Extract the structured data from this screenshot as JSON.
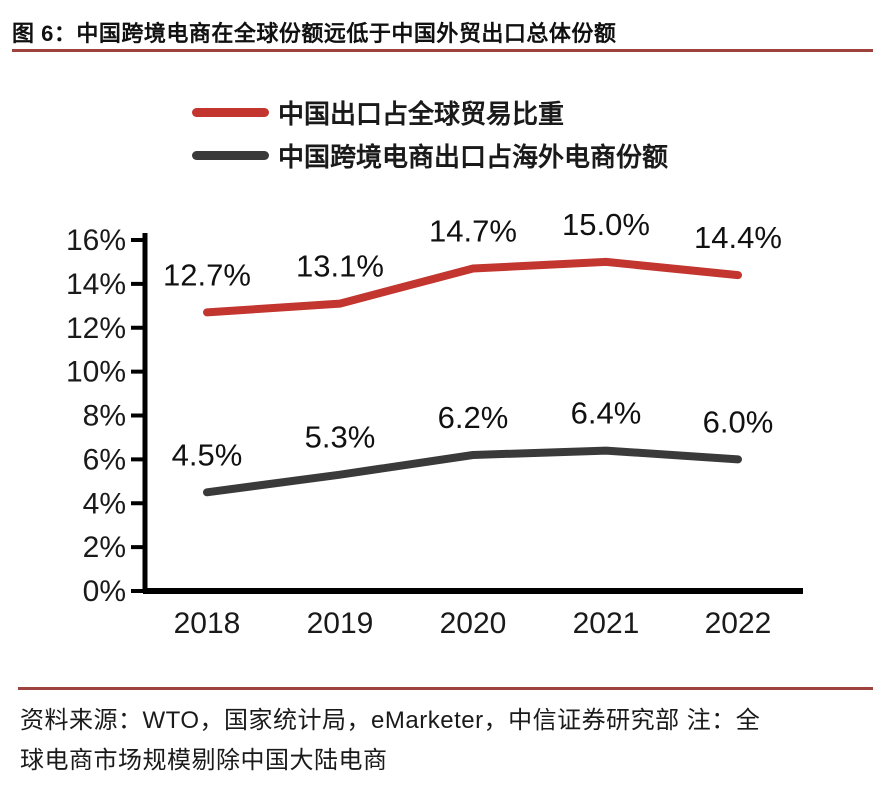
{
  "page": {
    "background": "#FFFFFF"
  },
  "header": {
    "title": "图 6：中国跨境电商在全球份额远低于中国外贸出口总体份额",
    "rule_color": "#9E423E"
  },
  "legend": {
    "items": [
      {
        "label": "中国出口占全球贸易比重",
        "color": "#C2362F"
      },
      {
        "label": "中国跨境电商出口占海外电商份额",
        "color": "#3A3A3A"
      }
    ]
  },
  "chart_data": {
    "type": "line",
    "categories": [
      "2018",
      "2019",
      "2020",
      "2021",
      "2022"
    ],
    "series": [
      {
        "name": "中国出口占全球贸易比重",
        "color": "#C2362F",
        "values": [
          12.7,
          13.1,
          14.7,
          15.0,
          14.4
        ],
        "point_labels": [
          "12.7%",
          "13.1%",
          "14.7%",
          "15.0%",
          "14.4%"
        ]
      },
      {
        "name": "中国跨境电商出口占海外电商份额",
        "color": "#3A3A3A",
        "values": [
          4.5,
          5.3,
          6.2,
          6.4,
          6.0
        ],
        "point_labels": [
          "4.5%",
          "5.3%",
          "6.2%",
          "6.4%",
          "6.0%"
        ]
      }
    ],
    "ylim": [
      0,
      16
    ],
    "ytick_step": 2,
    "ytick_labels": [
      "0%",
      "2%",
      "4%",
      "6%",
      "8%",
      "10%",
      "12%",
      "14%",
      "16%"
    ],
    "xlabel": "",
    "ylabel": "",
    "grid": false,
    "legend_position": "top-left",
    "axis_color": "#000000",
    "text_color": "#1A1A1A"
  },
  "footer": {
    "rule_color": "#9E423E",
    "source_line1": "资料来源：WTO，国家统计局，eMarketer，中信证券研究部 注：全",
    "source_line2": "球电商市场规模剔除中国大陆电商"
  }
}
